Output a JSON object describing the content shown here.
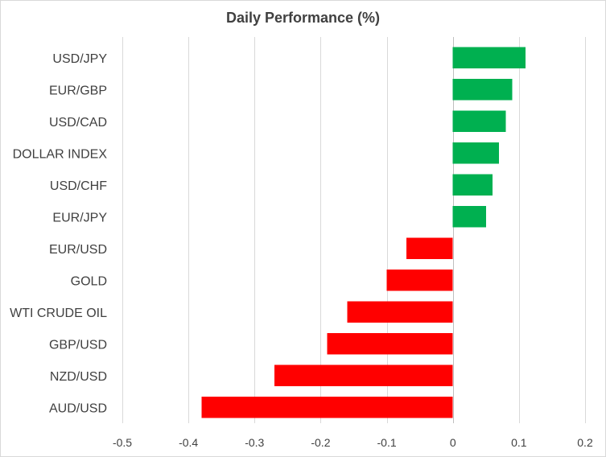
{
  "chart_data": {
    "type": "bar",
    "orientation": "horizontal",
    "title": "Daily Performance (%)",
    "categories": [
      "USD/JPY",
      "EUR/GBP",
      "USD/CAD",
      "DOLLAR INDEX",
      "USD/CHF",
      "EUR/JPY",
      "EUR/USD",
      "GOLD",
      "WTI CRUDE OIL",
      "GBP/USD",
      "NZD/USD",
      "AUD/USD"
    ],
    "values": [
      0.11,
      0.09,
      0.08,
      0.07,
      0.06,
      0.05,
      -0.07,
      -0.1,
      -0.16,
      -0.19,
      -0.27,
      -0.38
    ],
    "xlim": [
      -0.5,
      0.2
    ],
    "xticks": [
      -0.5,
      -0.4,
      -0.3,
      -0.2,
      -0.1,
      0,
      0.1,
      0.2
    ],
    "xtick_labels": [
      "-0.5",
      "-0.4",
      "-0.3",
      "-0.2",
      "-0.1",
      "0",
      "0.1",
      "0.2"
    ],
    "grid": true,
    "legend": "none",
    "colors": {
      "positive": "#00b050",
      "negative": "#ff0000"
    }
  }
}
